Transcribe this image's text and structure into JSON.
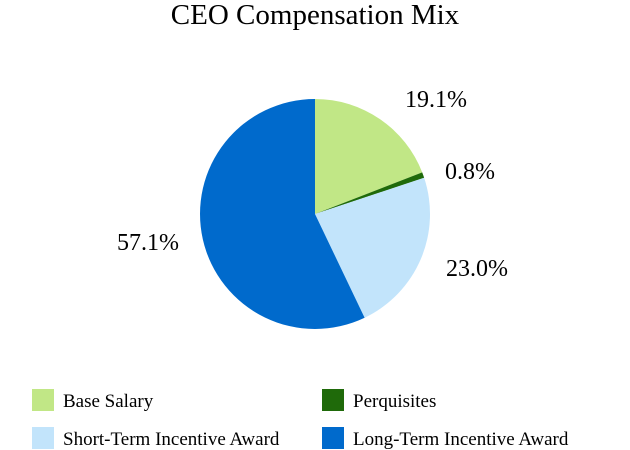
{
  "chart_data": {
    "type": "pie",
    "title": "CEO Compensation Mix",
    "slices": [
      {
        "name": "Base Salary",
        "value": 19.1,
        "label": "19.1%",
        "color": "#c1e786"
      },
      {
        "name": "Perquisites",
        "value": 0.8,
        "label": "0.8%",
        "color": "#1f6a0a"
      },
      {
        "name": "Short-Term Incentive Award",
        "value": 23.0,
        "label": "23.0%",
        "color": "#c2e4fb"
      },
      {
        "name": "Long-Term Incentive Award",
        "value": 57.1,
        "label": "57.1%",
        "color": "#006acc"
      }
    ],
    "start_angle": "12 o'clock",
    "direction": "clockwise",
    "legend": {
      "placement": "bottom",
      "columns": 2
    }
  }
}
